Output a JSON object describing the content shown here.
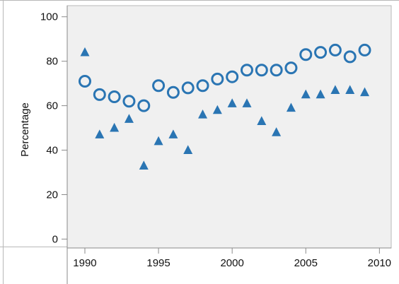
{
  "chart_data": {
    "type": "scatter",
    "title": "",
    "xlabel": "",
    "ylabel": "Percentage",
    "xlim": [
      1988.8,
      2010.8
    ],
    "ylim": [
      -4,
      105
    ],
    "x_ticks": [
      "1990",
      "1995",
      "2000",
      "2005",
      "2010"
    ],
    "y_ticks": [
      "0",
      "20",
      "40",
      "60",
      "80",
      "100"
    ],
    "grid": false,
    "legend": "none",
    "series": [
      {
        "marker": "circle-open",
        "color": "#2a75b3",
        "points": [
          [
            1990,
            71
          ],
          [
            1991,
            65
          ],
          [
            1992,
            64
          ],
          [
            1993,
            62
          ],
          [
            1994,
            60
          ],
          [
            1995,
            69
          ],
          [
            1996,
            66
          ],
          [
            1997,
            68
          ],
          [
            1998,
            69
          ],
          [
            1999,
            72
          ],
          [
            2000,
            73
          ],
          [
            2001,
            76
          ],
          [
            2002,
            76
          ],
          [
            2003,
            76
          ],
          [
            2004,
            77
          ],
          [
            2005,
            83
          ],
          [
            2006,
            84
          ],
          [
            2007,
            85
          ],
          [
            2008,
            82
          ],
          [
            2009,
            85
          ]
        ]
      },
      {
        "marker": "triangle-filled",
        "color": "#2a75b3",
        "points": [
          [
            1990,
            84
          ],
          [
            1991,
            47
          ],
          [
            1992,
            50
          ],
          [
            1993,
            54
          ],
          [
            1994,
            33
          ],
          [
            1995,
            44
          ],
          [
            1996,
            47
          ],
          [
            1997,
            40
          ],
          [
            1998,
            56
          ],
          [
            1999,
            58
          ],
          [
            2000,
            61
          ],
          [
            2001,
            61
          ],
          [
            2002,
            53
          ],
          [
            2003,
            48
          ],
          [
            2004,
            59
          ],
          [
            2005,
            65
          ],
          [
            2006,
            65
          ],
          [
            2007,
            67
          ],
          [
            2008,
            67
          ],
          [
            2009,
            66
          ]
        ]
      }
    ]
  },
  "colors": {
    "plot_background": "#f0f0f0",
    "frame": "#b8b8b8",
    "axis": "#8a8a8a",
    "marker": "#2a75b3"
  }
}
